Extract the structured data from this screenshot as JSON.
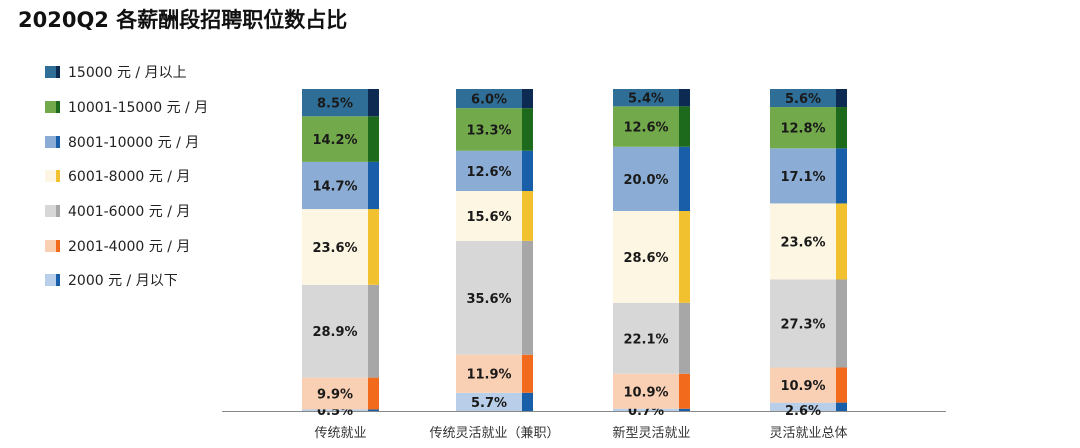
{
  "chart_data": {
    "type": "stacked-bar",
    "title": "2020Q2 各薪酬段招聘职位数占比",
    "categories": [
      "传统就业",
      "传统灵活就业（兼职）",
      "新型灵活就业",
      "灵活就业总体"
    ],
    "series": [
      {
        "name": "15000 元 / 月以上",
        "color": "#2f6e97",
        "accent": "#0d2b52",
        "values": [
          8.5,
          6.0,
          5.4,
          5.6
        ]
      },
      {
        "name": "10001-15000 元 / 月",
        "color": "#72a94a",
        "accent": "#1d6a1d",
        "values": [
          14.2,
          13.3,
          12.6,
          12.8
        ]
      },
      {
        "name": "8001-10000 元 / 月",
        "color": "#8badd5",
        "accent": "#185ea8",
        "values": [
          14.7,
          12.6,
          20.0,
          17.1
        ]
      },
      {
        "name": "6001-8000 元 / 月",
        "color": "#fdf6e2",
        "accent": "#f2c130",
        "values": [
          23.6,
          15.6,
          28.6,
          23.6
        ]
      },
      {
        "name": "4001-6000 元 / 月",
        "color": "#d7d7d7",
        "accent": "#a7a7a7",
        "values": [
          28.9,
          35.6,
          22.1,
          27.3
        ]
      },
      {
        "name": "2001-4000 元 / 月",
        "color": "#fad0b4",
        "accent": "#f26b1c",
        "values": [
          9.9,
          11.9,
          10.9,
          10.9
        ]
      },
      {
        "name": "2000 元 / 月以下",
        "color": "#b9cee8",
        "accent": "#185ea8",
        "values": [
          0.5,
          5.7,
          0.7,
          2.6
        ]
      }
    ],
    "data_labels": [
      [
        "8.5%",
        "6.0%",
        "5.4%",
        "5.6%"
      ],
      [
        "14.2%",
        "13.3%",
        "12.6%",
        "12.8%"
      ],
      [
        "14.7%",
        "12.6%",
        "20.0%",
        "17.1%"
      ],
      [
        "23.6%",
        "15.6%",
        "28.6%",
        "23.6%"
      ],
      [
        "28.9%",
        "35.6%",
        "22.1%",
        "27.3%"
      ],
      [
        "9.9%",
        "11.9%",
        "10.9%",
        "10.9%"
      ],
      [
        "0.5%",
        "5.7%",
        "0.7%",
        "2.6%"
      ]
    ],
    "ylim": [
      0,
      100
    ],
    "legend_position": "left",
    "grid": false
  }
}
